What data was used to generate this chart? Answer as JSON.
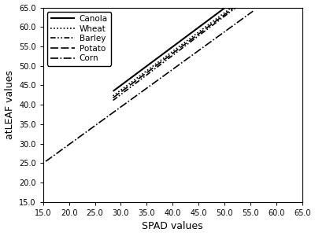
{
  "title": "",
  "xlabel": "SPAD values",
  "ylabel": "atLEAF values",
  "xlim": [
    15.0,
    65.0
  ],
  "ylim": [
    15.0,
    65.0
  ],
  "xticks": [
    15.0,
    20.0,
    25.0,
    30.0,
    35.0,
    40.0,
    45.0,
    50.0,
    55.0,
    60.0,
    65.0
  ],
  "yticks": [
    15.0,
    20.0,
    25.0,
    30.0,
    35.0,
    40.0,
    45.0,
    50.0,
    55.0,
    60.0,
    65.0
  ],
  "legend_labels": [
    "Canola",
    "Wheat",
    "Barley",
    "Potato",
    "Corn"
  ],
  "legend_loc": "upper left",
  "background_color": "#ffffff",
  "line_color": "#000000",
  "lines": [
    {
      "name": "Canola",
      "style": "solid",
      "x_start": 28.5,
      "x_end": 52.5,
      "slope": 0.993,
      "intercept": 15.2,
      "lw": 1.5
    },
    {
      "name": "Wheat",
      "style": "dotted",
      "x_start": 28.5,
      "x_end": 52.5,
      "slope": 0.993,
      "intercept": 14.0,
      "lw": 1.2
    },
    {
      "name": "Barley",
      "style": "dashdotdot",
      "x_start": 28.5,
      "x_end": 52.5,
      "slope": 1.005,
      "intercept": 12.5,
      "lw": 1.2
    },
    {
      "name": "Potato",
      "style": "dashed",
      "x_start": 28.5,
      "x_end": 52.5,
      "slope": 0.993,
      "intercept": 13.5,
      "lw": 1.2
    },
    {
      "name": "Corn",
      "style": "longdashdot",
      "x_start": 15.5,
      "x_end": 55.5,
      "slope": 0.965,
      "intercept": 10.5,
      "lw": 1.2
    }
  ],
  "figsize": [
    4.0,
    3.0
  ],
  "dpi": 100,
  "fontsize_labels": 9,
  "fontsize_ticks": 7,
  "fontsize_legend": 7.5
}
